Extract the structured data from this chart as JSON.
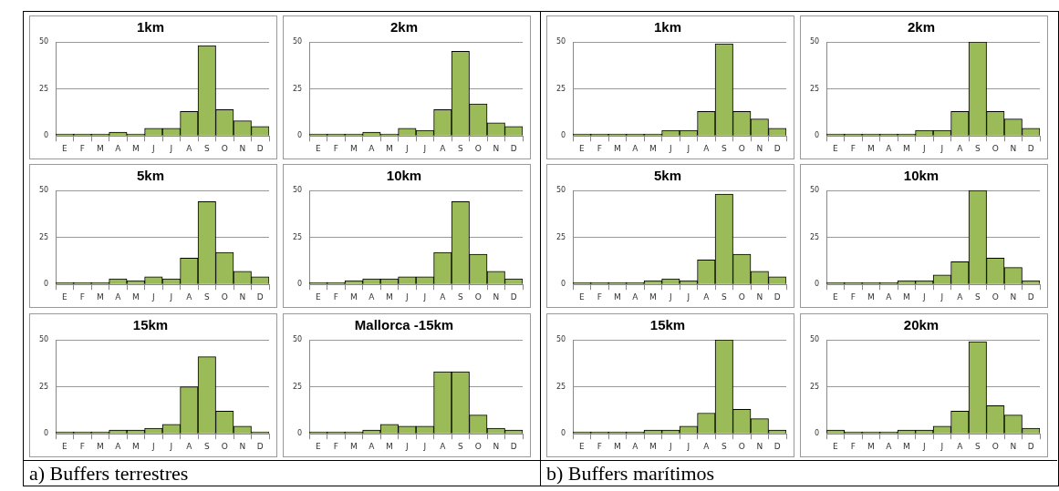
{
  "chart_data": [
    {
      "type": "bar",
      "title": "1km",
      "categories": [
        "E",
        "F",
        "M",
        "A",
        "M",
        "J",
        "J",
        "A",
        "S",
        "O",
        "N",
        "D"
      ],
      "values": [
        1,
        1,
        1,
        2,
        1,
        4,
        4,
        13,
        48,
        14,
        8,
        5
      ],
      "color": "#9bbb59",
      "ylim": [
        0,
        50
      ],
      "yticks": [
        0,
        25,
        50
      ],
      "grid": "y",
      "annotations": [
        "a) Buffers terrestres"
      ]
    },
    {
      "type": "bar",
      "title": "2km",
      "categories": [
        "E",
        "F",
        "M",
        "A",
        "M",
        "J",
        "J",
        "A",
        "S",
        "O",
        "N",
        "D"
      ],
      "values": [
        1,
        1,
        1,
        2,
        1,
        4,
        3,
        14,
        45,
        17,
        7,
        5
      ],
      "color": "#9bbb59",
      "ylim": [
        0,
        50
      ],
      "yticks": [
        0,
        25,
        50
      ],
      "grid": "y"
    },
    {
      "type": "bar",
      "title": "5km",
      "categories": [
        "E",
        "F",
        "M",
        "A",
        "M",
        "J",
        "J",
        "A",
        "S",
        "O",
        "N",
        "D"
      ],
      "values": [
        1,
        1,
        1,
        3,
        2,
        4,
        3,
        14,
        44,
        17,
        7,
        4
      ],
      "color": "#9bbb59",
      "ylim": [
        0,
        50
      ],
      "yticks": [
        0,
        25,
        50
      ],
      "grid": "y"
    },
    {
      "type": "bar",
      "title": "10km",
      "categories": [
        "E",
        "F",
        "M",
        "A",
        "M",
        "J",
        "J",
        "A",
        "S",
        "O",
        "N",
        "D"
      ],
      "values": [
        1,
        1,
        2,
        3,
        3,
        4,
        4,
        17,
        44,
        16,
        7,
        3
      ],
      "color": "#9bbb59",
      "ylim": [
        0,
        50
      ],
      "yticks": [
        0,
        25,
        50
      ],
      "grid": "y"
    },
    {
      "type": "bar",
      "title": "15km",
      "categories": [
        "E",
        "F",
        "M",
        "A",
        "M",
        "J",
        "J",
        "A",
        "S",
        "O",
        "N",
        "D"
      ],
      "values": [
        1,
        1,
        1,
        2,
        2,
        3,
        5,
        25,
        41,
        12,
        4,
        1
      ],
      "color": "#9bbb59",
      "ylim": [
        0,
        50
      ],
      "yticks": [
        0,
        25,
        50
      ],
      "grid": "y"
    },
    {
      "type": "bar",
      "title": "Mallorca -15km",
      "categories": [
        "E",
        "F",
        "M",
        "A",
        "M",
        "J",
        "J",
        "A",
        "S",
        "O",
        "N",
        "D"
      ],
      "values": [
        1,
        1,
        1,
        2,
        5,
        4,
        4,
        33,
        33,
        10,
        3,
        2
      ],
      "color": "#9bbb59",
      "ylim": [
        0,
        50
      ],
      "yticks": [
        0,
        25,
        50
      ],
      "grid": "y"
    },
    {
      "type": "bar",
      "title": "1km",
      "categories": [
        "E",
        "F",
        "M",
        "A",
        "M",
        "J",
        "J",
        "A",
        "S",
        "O",
        "N",
        "D"
      ],
      "values": [
        1,
        1,
        1,
        1,
        1,
        3,
        3,
        13,
        49,
        13,
        9,
        4
      ],
      "color": "#9bbb59",
      "ylim": [
        0,
        50
      ],
      "yticks": [
        0,
        25,
        50
      ],
      "grid": "y",
      "annotations": [
        "b) Buffers marítimos"
      ]
    },
    {
      "type": "bar",
      "title": "2km",
      "categories": [
        "E",
        "F",
        "M",
        "A",
        "M",
        "J",
        "J",
        "A",
        "S",
        "O",
        "N",
        "D"
      ],
      "values": [
        1,
        1,
        1,
        1,
        1,
        3,
        3,
        13,
        50,
        13,
        9,
        4
      ],
      "color": "#9bbb59",
      "ylim": [
        0,
        50
      ],
      "yticks": [
        0,
        25,
        50
      ],
      "grid": "y"
    },
    {
      "type": "bar",
      "title": "5km",
      "categories": [
        "E",
        "F",
        "M",
        "A",
        "M",
        "J",
        "J",
        "A",
        "S",
        "O",
        "N",
        "D"
      ],
      "values": [
        1,
        1,
        1,
        1,
        2,
        3,
        2,
        13,
        48,
        16,
        7,
        4
      ],
      "color": "#9bbb59",
      "ylim": [
        0,
        50
      ],
      "yticks": [
        0,
        25,
        50
      ],
      "grid": "y"
    },
    {
      "type": "bar",
      "title": "10km",
      "categories": [
        "E",
        "F",
        "M",
        "A",
        "M",
        "J",
        "J",
        "A",
        "S",
        "O",
        "N",
        "D"
      ],
      "values": [
        1,
        1,
        1,
        1,
        2,
        2,
        5,
        12,
        50,
        14,
        9,
        2
      ],
      "color": "#9bbb59",
      "ylim": [
        0,
        50
      ],
      "yticks": [
        0,
        25,
        50
      ],
      "grid": "y"
    },
    {
      "type": "bar",
      "title": "15km",
      "categories": [
        "E",
        "F",
        "M",
        "A",
        "M",
        "J",
        "J",
        "A",
        "S",
        "O",
        "N",
        "D"
      ],
      "values": [
        1,
        1,
        1,
        1,
        2,
        2,
        4,
        11,
        50,
        13,
        8,
        2
      ],
      "color": "#9bbb59",
      "ylim": [
        0,
        50
      ],
      "yticks": [
        0,
        25,
        50
      ],
      "grid": "y"
    },
    {
      "type": "bar",
      "title": "20km",
      "categories": [
        "E",
        "F",
        "M",
        "A",
        "M",
        "J",
        "J",
        "A",
        "S",
        "O",
        "N",
        "D"
      ],
      "values": [
        2,
        1,
        1,
        1,
        2,
        2,
        4,
        12,
        49,
        15,
        10,
        3
      ],
      "color": "#9bbb59",
      "ylim": [
        0,
        50
      ],
      "yticks": [
        0,
        25,
        50
      ],
      "grid": "y"
    }
  ]
}
